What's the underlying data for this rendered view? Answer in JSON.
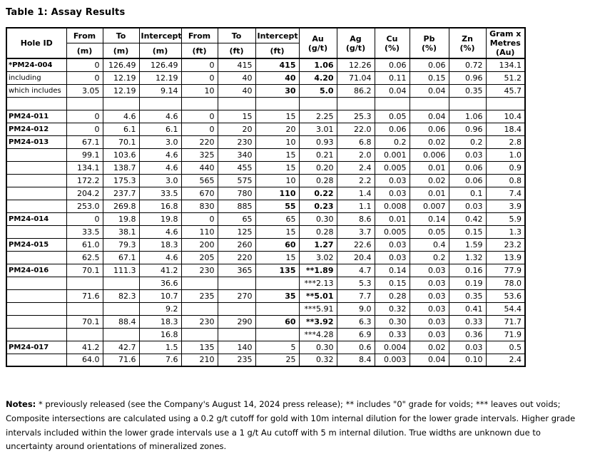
{
  "page": {
    "title": "Table 1: Assay Results"
  },
  "table": {
    "header": {
      "hole_id": "Hole ID",
      "top": [
        "From",
        "To",
        "Intercept",
        "From",
        "To",
        "Intercept"
      ],
      "bottom": [
        "(m)",
        "(m)",
        "(m)",
        "(ft)",
        "(ft)",
        "(ft)"
      ],
      "spanning": [
        "Au\n(g/t)",
        "Ag\n(g/t)",
        "Cu\n(%)",
        "Pb\n(%)",
        "Zn\n(%)",
        "Gram x\nMetres\n(Au)"
      ]
    },
    "columns": [
      "Hole ID",
      "From (m)",
      "To (m)",
      "Intercept (m)",
      "From (ft)",
      "To (ft)",
      "Intercept (ft)",
      "Au (g/t)",
      "Ag (g/t)",
      "Cu (%)",
      "Pb (%)",
      "Zn (%)",
      "Gram x Metres (Au)"
    ],
    "rows": [
      {
        "cells": [
          "*PM24-004",
          "0",
          "126.49",
          "126.49",
          "0",
          "415",
          "415",
          "1.06",
          "12.26",
          "0.06",
          "0.06",
          "0.72",
          "134.1"
        ],
        "bold": [
          0,
          6,
          7
        ]
      },
      {
        "cells": [
          "including",
          "0",
          "12.19",
          "12.19",
          "0",
          "40",
          "40",
          "4.20",
          "71.04",
          "0.11",
          "0.15",
          "0.96",
          "51.2"
        ],
        "bold": [
          6,
          7
        ]
      },
      {
        "cells": [
          "which includes",
          "3.05",
          "12.19",
          "9.14",
          "10",
          "40",
          "30",
          "5.0",
          "86.2",
          "0.04",
          "0.04",
          "0.35",
          "45.7"
        ],
        "bold": [
          6,
          7
        ]
      },
      {
        "cells": [
          "",
          "",
          "",
          "",
          "",
          "",
          "",
          "",
          "",
          "",
          "",
          "",
          ""
        ],
        "bold": []
      },
      {
        "cells": [
          "PM24-011",
          "0",
          "4.6",
          "4.6",
          "0",
          "15",
          "15",
          "2.25",
          "25.3",
          "0.05",
          "0.04",
          "1.06",
          "10.4"
        ],
        "bold": [
          0
        ]
      },
      {
        "cells": [
          "PM24-012",
          "0",
          "6.1",
          "6.1",
          "0",
          "20",
          "20",
          "3.01",
          "22.0",
          "0.06",
          "0.06",
          "0.96",
          "18.4"
        ],
        "bold": [
          0
        ]
      },
      {
        "cells": [
          "PM24-013",
          "67.1",
          "70.1",
          "3.0",
          "220",
          "230",
          "10",
          "0.93",
          "6.8",
          "0.2",
          "0.02",
          "0.2",
          "2.8"
        ],
        "bold": [
          0
        ]
      },
      {
        "cells": [
          "",
          "99.1",
          "103.6",
          "4.6",
          "325",
          "340",
          "15",
          "0.21",
          "2.0",
          "0.001",
          "0.006",
          "0.03",
          "1.0"
        ],
        "bold": []
      },
      {
        "cells": [
          "",
          "134.1",
          "138.7",
          "4.6",
          "440",
          "455",
          "15",
          "0.20",
          "2.4",
          "0.005",
          "0.01",
          "0.06",
          "0.9"
        ],
        "bold": []
      },
      {
        "cells": [
          "",
          "172.2",
          "175.3",
          "3.0",
          "565",
          "575",
          "10",
          "0.28",
          "2.2",
          "0.03",
          "0.02",
          "0.06",
          "0.8"
        ],
        "bold": []
      },
      {
        "cells": [
          "",
          "204.2",
          "237.7",
          "33.5",
          "670",
          "780",
          "110",
          "0.22",
          "1.4",
          "0.03",
          "0.01",
          "0.1",
          "7.4"
        ],
        "bold": [
          6,
          7
        ]
      },
      {
        "cells": [
          "",
          "253.0",
          "269.8",
          "16.8",
          "830",
          "885",
          "55",
          "0.23",
          "1.1",
          "0.008",
          "0.007",
          "0.03",
          "3.9"
        ],
        "bold": [
          6,
          7
        ]
      },
      {
        "cells": [
          "PM24-014",
          "0",
          "19.8",
          "19.8",
          "0",
          "65",
          "65",
          "0.30",
          "8.6",
          "0.01",
          "0.14",
          "0.42",
          "5.9"
        ],
        "bold": [
          0
        ]
      },
      {
        "cells": [
          "",
          "33.5",
          "38.1",
          "4.6",
          "110",
          "125",
          "15",
          "0.28",
          "3.7",
          "0.005",
          "0.05",
          "0.15",
          "1.3"
        ],
        "bold": []
      },
      {
        "cells": [
          "PM24-015",
          "61.0",
          "79.3",
          "18.3",
          "200",
          "260",
          "60",
          "1.27",
          "22.6",
          "0.03",
          "0.4",
          "1.59",
          "23.2"
        ],
        "bold": [
          0,
          6,
          7
        ]
      },
      {
        "cells": [
          "",
          "62.5",
          "67.1",
          "4.6",
          "205",
          "220",
          "15",
          "3.02",
          "20.4",
          "0.03",
          "0.2",
          "1.32",
          "13.9"
        ],
        "bold": []
      },
      {
        "cells": [
          "PM24-016",
          "70.1",
          "111.3",
          "41.2",
          "230",
          "365",
          "135",
          "**1.89",
          "4.7",
          "0.14",
          "0.03",
          "0.16",
          "77.9"
        ],
        "bold": [
          0,
          6,
          7
        ]
      },
      {
        "cells": [
          "",
          "",
          "",
          "36.6",
          "",
          "",
          "",
          "***2.13",
          "5.3",
          "0.15",
          "0.03",
          "0.19",
          "78.0"
        ],
        "bold": []
      },
      {
        "cells": [
          "",
          "71.6",
          "82.3",
          "10.7",
          "235",
          "270",
          "35",
          "**5.01",
          "7.7",
          "0.28",
          "0.03",
          "0.35",
          "53.6"
        ],
        "bold": [
          6,
          7
        ]
      },
      {
        "cells": [
          "",
          "",
          "",
          "9.2",
          "",
          "",
          "",
          "***5.91",
          "9.0",
          "0.32",
          "0.03",
          "0.41",
          "54.4"
        ],
        "bold": []
      },
      {
        "cells": [
          "",
          "70.1",
          "88.4",
          "18.3",
          "230",
          "290",
          "60",
          "**3.92",
          "6.3",
          "0.30",
          "0.03",
          "0.33",
          "71.7"
        ],
        "bold": [
          6,
          7
        ]
      },
      {
        "cells": [
          "",
          "",
          "",
          "16.8",
          "",
          "",
          "",
          "***4.28",
          "6.9",
          "0.33",
          "0.03",
          "0.36",
          "71.9"
        ],
        "bold": []
      },
      {
        "cells": [
          "PM24-017",
          "41.2",
          "42.7",
          "1.5",
          "135",
          "140",
          "5",
          "0.30",
          "0.6",
          "0.004",
          "0.02",
          "0.03",
          "0.5"
        ],
        "bold": [
          0
        ]
      },
      {
        "cells": [
          "",
          "64.0",
          "71.6",
          "7.6",
          "210",
          "235",
          "25",
          "0.32",
          "8.4",
          "0.003",
          "0.04",
          "0.10",
          "2.4"
        ],
        "bold": []
      }
    ]
  },
  "notes": {
    "label": "Notes:",
    "text": "* previously released (see the Company's August 14, 2024 press release); ** includes \"0\" grade for voids; *** leaves out voids; Composite intersections are calculated using a 0.2 g/t cutoff for gold with 10m internal dilution for the lower grade intervals. Higher grade intervals included within the lower grade intervals use a 1 g/t Au cutoff with 5 m internal dilution. True widths are unknown due to uncertainty around orientations of mineralized zones."
  },
  "colors": {
    "text": "#000000",
    "border": "#000000",
    "background": "#ffffff"
  }
}
